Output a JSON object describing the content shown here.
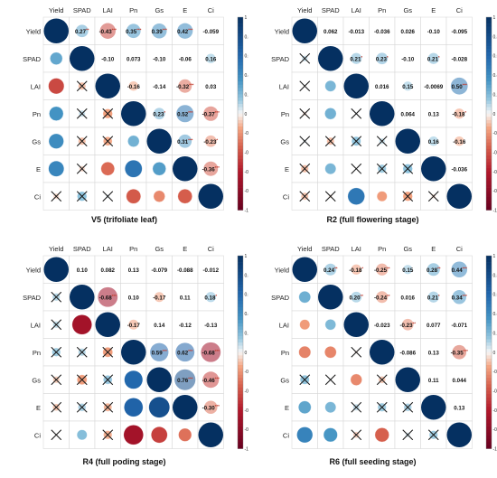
{
  "figure": {
    "variables": [
      "Yield",
      "SPAD",
      "LAI",
      "Pn",
      "Gs",
      "E",
      "Ci"
    ],
    "colorbar_ticks": [
      "1",
      "0.8",
      "0.6",
      "0.4",
      "0.2",
      "0",
      "-0.2",
      "-0.4",
      "-0.6",
      "-0.8",
      "-1"
    ],
    "colors": {
      "positive": "#053061",
      "negative": "#67001f",
      "neutral": "#f7f7f7",
      "grid": "#d9d9d9",
      "cross": "#1a1a1a"
    }
  },
  "chart_data": [
    {
      "type": "heatmap",
      "title": "V5 (trifoliate leaf)",
      "variables": [
        "Yield",
        "SPAD",
        "LAI",
        "Pn",
        "Gs",
        "E",
        "Ci"
      ],
      "upper_labels": [
        [
          "",
          "0.27**",
          "-0.43***",
          "0.35***",
          "0.39***",
          "0.42***",
          "-0.059"
        ],
        [
          "",
          "",
          "-0.10",
          "0.073",
          "-0.10",
          "-0.06",
          "0.16"
        ],
        [
          "",
          "",
          "",
          "-0.16",
          "-0.14",
          "-0.32***",
          "0.03"
        ],
        [
          "",
          "",
          "",
          "",
          "0.23*",
          "0.52***",
          "-0.37***"
        ],
        [
          "",
          "",
          "",
          "",
          "",
          "0.31***",
          "-0.23*"
        ],
        [
          "",
          "",
          "",
          "",
          "",
          "",
          "-0.36***"
        ],
        [
          "",
          "",
          "",
          "",
          "",
          "",
          ""
        ]
      ],
      "lower_values": [
        [
          null,
          null,
          null,
          null,
          null,
          null,
          null
        ],
        [
          0.27,
          null,
          null,
          null,
          null,
          null,
          null
        ],
        [
          -0.43,
          -0.1,
          null,
          null,
          null,
          null,
          null
        ],
        [
          0.35,
          0.073,
          -0.16,
          null,
          null,
          null,
          null
        ],
        [
          0.39,
          -0.1,
          -0.14,
          0.23,
          null,
          null,
          null
        ],
        [
          0.42,
          -0.06,
          -0.32,
          0.52,
          0.31,
          null,
          null
        ],
        [
          -0.059,
          0.16,
          0.03,
          -0.37,
          -0.23,
          -0.36,
          null
        ]
      ],
      "lower_significant": [
        [
          false,
          false,
          false,
          false,
          false,
          false,
          false
        ],
        [
          true,
          false,
          false,
          false,
          false,
          false,
          false
        ],
        [
          true,
          false,
          false,
          false,
          false,
          false,
          false
        ],
        [
          true,
          false,
          false,
          false,
          false,
          false,
          false
        ],
        [
          true,
          false,
          false,
          true,
          false,
          false,
          false
        ],
        [
          true,
          false,
          true,
          true,
          true,
          false,
          false
        ],
        [
          false,
          false,
          false,
          true,
          true,
          true,
          false
        ]
      ],
      "colorbar": {
        "min": -1,
        "max": 1
      }
    },
    {
      "type": "heatmap",
      "title": "R2 (full flowering stage)",
      "variables": [
        "Yield",
        "SPAD",
        "LAI",
        "Pn",
        "Gs",
        "E",
        "Ci"
      ],
      "upper_labels": [
        [
          "",
          "0.062",
          "-0.013",
          "-0.036",
          "0.026",
          "-0.10",
          "-0.095"
        ],
        [
          "",
          "",
          "0.21*",
          "0.23*",
          "-0.10",
          "0.21*",
          "-0.028"
        ],
        [
          "",
          "",
          "",
          "0.016",
          "0.15",
          "-0.0069",
          "0.50***"
        ],
        [
          "",
          "",
          "",
          "",
          "0.064",
          "0.13",
          "-0.18*"
        ],
        [
          "",
          "",
          "",
          "",
          "",
          "0.16",
          "-0.16"
        ],
        [
          "",
          "",
          "",
          "",
          "",
          "",
          "-0.036"
        ],
        [
          "",
          "",
          "",
          "",
          "",
          "",
          ""
        ]
      ],
      "lower_values": [
        [
          null,
          null,
          null,
          null,
          null,
          null,
          null
        ],
        [
          0.062,
          null,
          null,
          null,
          null,
          null,
          null
        ],
        [
          -0.013,
          0.21,
          null,
          null,
          null,
          null,
          null
        ],
        [
          -0.036,
          0.23,
          0.016,
          null,
          null,
          null,
          null
        ],
        [
          0.026,
          -0.1,
          0.15,
          0.064,
          null,
          null,
          null
        ],
        [
          -0.1,
          0.21,
          -0.0069,
          0.13,
          0.16,
          null,
          null
        ],
        [
          -0.095,
          -0.028,
          0.5,
          -0.18,
          -0.16,
          -0.036,
          null
        ]
      ],
      "lower_significant": [
        [
          false,
          false,
          false,
          false,
          false,
          false,
          false
        ],
        [
          false,
          false,
          false,
          false,
          false,
          false,
          false
        ],
        [
          false,
          true,
          false,
          false,
          false,
          false,
          false
        ],
        [
          false,
          true,
          false,
          false,
          false,
          false,
          false
        ],
        [
          false,
          false,
          false,
          false,
          false,
          false,
          false
        ],
        [
          false,
          true,
          false,
          false,
          false,
          false,
          false
        ],
        [
          false,
          false,
          true,
          true,
          false,
          false,
          false
        ]
      ],
      "colorbar": {
        "min": -1,
        "max": 1
      }
    },
    {
      "type": "heatmap",
      "title": "R4 (full poding stage)",
      "variables": [
        "Yield",
        "SPAD",
        "LAI",
        "Pn",
        "Gs",
        "E",
        "Ci"
      ],
      "upper_labels": [
        [
          "",
          "0.10",
          "0.082",
          "0.13",
          "-0.079",
          "-0.088",
          "-0.012"
        ],
        [
          "",
          "",
          "-0.68***",
          "0.10",
          "-0.17",
          "0.11",
          "0.18*"
        ],
        [
          "",
          "",
          "",
          "-0.17",
          "0.14",
          "-0.12",
          "-0.13"
        ],
        [
          "",
          "",
          "",
          "",
          "0.59***",
          "0.62***",
          "-0.68***"
        ],
        [
          "",
          "",
          "",
          "",
          "",
          "0.76***",
          "-0.46***"
        ],
        [
          "",
          "",
          "",
          "",
          "",
          "",
          "-0.30***"
        ],
        [
          "",
          "",
          "",
          "",
          "",
          "",
          ""
        ]
      ],
      "lower_values": [
        [
          null,
          null,
          null,
          null,
          null,
          null,
          null
        ],
        [
          0.1,
          null,
          null,
          null,
          null,
          null,
          null
        ],
        [
          0.082,
          -0.68,
          null,
          null,
          null,
          null,
          null
        ],
        [
          0.13,
          0.1,
          -0.17,
          null,
          null,
          null,
          null
        ],
        [
          -0.079,
          -0.17,
          0.14,
          0.59,
          null,
          null,
          null
        ],
        [
          -0.088,
          0.11,
          -0.12,
          0.62,
          0.76,
          null,
          null
        ],
        [
          -0.012,
          0.18,
          -0.13,
          -0.68,
          -0.46,
          -0.3,
          null
        ]
      ],
      "lower_significant": [
        [
          false,
          false,
          false,
          false,
          false,
          false,
          false
        ],
        [
          false,
          false,
          false,
          false,
          false,
          false,
          false
        ],
        [
          false,
          true,
          false,
          false,
          false,
          false,
          false
        ],
        [
          false,
          false,
          false,
          false,
          false,
          false,
          false
        ],
        [
          false,
          false,
          false,
          true,
          false,
          false,
          false
        ],
        [
          false,
          false,
          false,
          true,
          true,
          false,
          false
        ],
        [
          false,
          true,
          false,
          true,
          true,
          true,
          false
        ]
      ],
      "colorbar": {
        "min": -1,
        "max": 1
      }
    },
    {
      "type": "heatmap",
      "title": "R6 (full seeding stage)",
      "variables": [
        "Yield",
        "SPAD",
        "LAI",
        "Pn",
        "Gs",
        "E",
        "Ci"
      ],
      "upper_labels": [
        [
          "",
          "0.24**",
          "-0.18*",
          "-0.25**",
          "0.15",
          "0.28**",
          "0.44***"
        ],
        [
          "",
          "",
          "0.20**",
          "-0.24**",
          "0.016",
          "0.21*",
          "0.34***"
        ],
        [
          "",
          "",
          "",
          "-0.023",
          "-0.23**",
          "0.077",
          "-0.071"
        ],
        [
          "",
          "",
          "",
          "",
          "-0.086",
          "0.13",
          "-0.35***"
        ],
        [
          "",
          "",
          "",
          "",
          "",
          "0.11",
          "0.044"
        ],
        [
          "",
          "",
          "",
          "",
          "",
          "",
          "0.13"
        ],
        [
          "",
          "",
          "",
          "",
          "",
          "",
          ""
        ]
      ],
      "lower_values": [
        [
          null,
          null,
          null,
          null,
          null,
          null,
          null
        ],
        [
          0.24,
          null,
          null,
          null,
          null,
          null,
          null
        ],
        [
          -0.18,
          0.2,
          null,
          null,
          null,
          null,
          null
        ],
        [
          -0.25,
          -0.24,
          -0.023,
          null,
          null,
          null,
          null
        ],
        [
          0.15,
          0.016,
          -0.23,
          -0.086,
          null,
          null,
          null
        ],
        [
          0.28,
          0.21,
          0.077,
          0.13,
          0.11,
          null,
          null
        ],
        [
          0.44,
          0.34,
          -0.071,
          -0.35,
          0.044,
          0.13,
          null
        ]
      ],
      "lower_significant": [
        [
          false,
          false,
          false,
          false,
          false,
          false,
          false
        ],
        [
          true,
          false,
          false,
          false,
          false,
          false,
          false
        ],
        [
          true,
          true,
          false,
          false,
          false,
          false,
          false
        ],
        [
          true,
          true,
          false,
          false,
          false,
          false,
          false
        ],
        [
          false,
          false,
          true,
          false,
          false,
          false,
          false
        ],
        [
          true,
          true,
          false,
          false,
          false,
          false,
          false
        ],
        [
          true,
          true,
          false,
          true,
          false,
          false,
          false
        ]
      ],
      "colorbar": {
        "min": -1,
        "max": 1
      }
    }
  ]
}
